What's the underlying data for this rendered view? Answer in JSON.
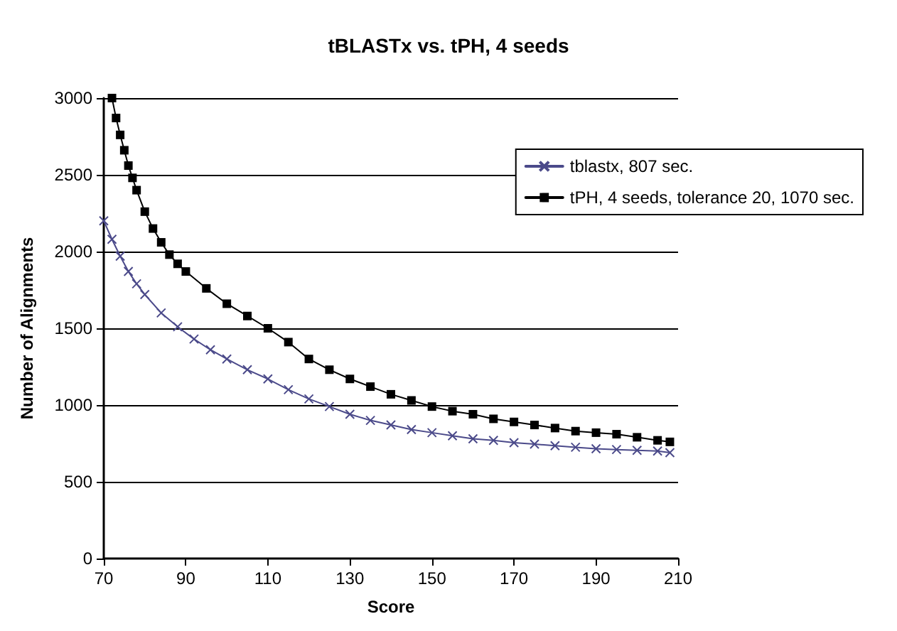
{
  "chart_data": {
    "type": "line",
    "title": "tBLASTx vs. tPH, 4 seeds",
    "xlabel": "Score",
    "ylabel": "Number of Alignments",
    "xlim": [
      70,
      210
    ],
    "xticks": [
      70,
      90,
      110,
      130,
      150,
      170,
      190,
      210
    ],
    "ylim": [
      0,
      3000
    ],
    "yticks": [
      0,
      500,
      1000,
      1500,
      2000,
      2500,
      3000
    ],
    "grid": "y",
    "legend": "top right",
    "series": [
      {
        "name": "tblastx, 807 sec.",
        "color": "#4b4a8a",
        "marker": "cross",
        "x": [
          70,
          72,
          74,
          76,
          78,
          80,
          84,
          88,
          92,
          96,
          100,
          105,
          110,
          115,
          120,
          125,
          130,
          135,
          140,
          145,
          150,
          155,
          160,
          165,
          170,
          175,
          180,
          185,
          190,
          195,
          200,
          205,
          208
        ],
        "values": [
          2200,
          2080,
          1970,
          1870,
          1790,
          1720,
          1600,
          1510,
          1430,
          1360,
          1300,
          1230,
          1170,
          1100,
          1040,
          990,
          940,
          900,
          870,
          840,
          820,
          800,
          780,
          770,
          755,
          745,
          735,
          725,
          715,
          710,
          705,
          700,
          690
        ]
      },
      {
        "name": "tPH, 4 seeds, tolerance 20, 1070 sec.",
        "color": "#000000",
        "marker": "square",
        "x": [
          72,
          73,
          74,
          75,
          76,
          77,
          78,
          80,
          82,
          84,
          86,
          88,
          90,
          95,
          100,
          105,
          110,
          115,
          120,
          125,
          130,
          135,
          140,
          145,
          150,
          155,
          160,
          165,
          170,
          175,
          180,
          185,
          190,
          195,
          200,
          205,
          208
        ],
        "values": [
          3000,
          2870,
          2760,
          2660,
          2560,
          2480,
          2400,
          2260,
          2150,
          2060,
          1980,
          1920,
          1870,
          1760,
          1660,
          1580,
          1500,
          1410,
          1300,
          1230,
          1170,
          1120,
          1070,
          1030,
          990,
          960,
          940,
          910,
          890,
          870,
          850,
          830,
          820,
          810,
          790,
          770,
          760
        ]
      }
    ]
  }
}
